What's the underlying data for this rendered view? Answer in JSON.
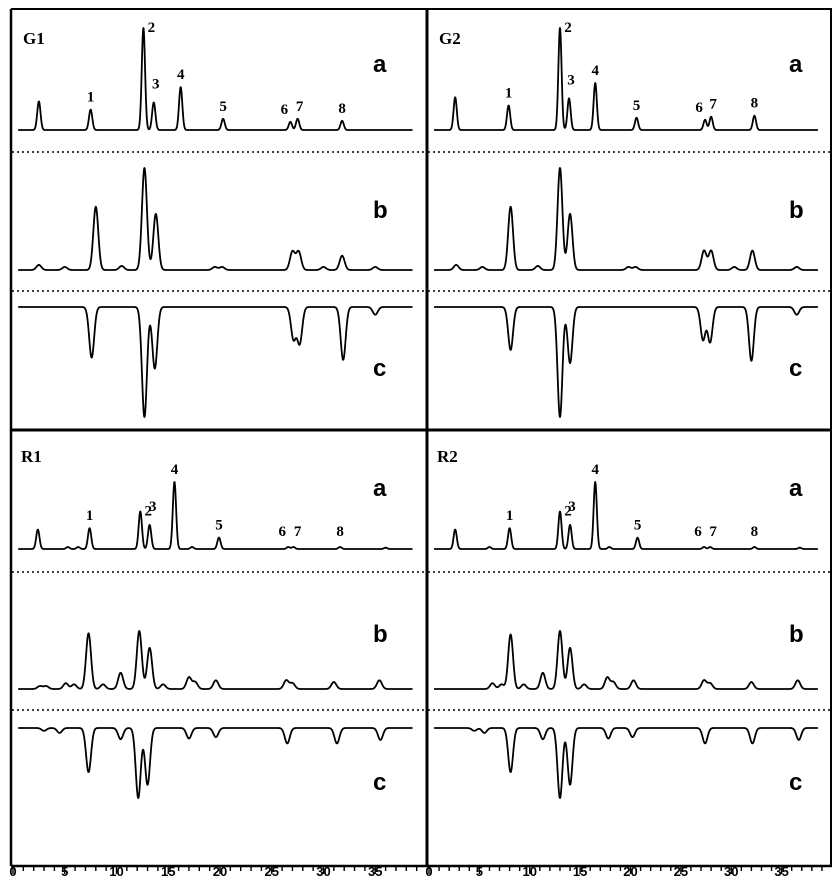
{
  "chart_data": {
    "type": "line",
    "x_axis": {
      "ticks": [
        0,
        5,
        10,
        15,
        20,
        25,
        30,
        35
      ],
      "tick_labels": [
        "0",
        "5",
        "10",
        "15",
        "20",
        "25",
        "30",
        "35"
      ],
      "range": [
        0,
        40
      ]
    },
    "grid": false,
    "legend": "none",
    "line_color": "#000000",
    "panels": [
      {
        "label": "G1",
        "traces": [
          {
            "label": "a",
            "orientation": "up",
            "peaks": [
              [
                2.5,
                0.28
              ],
              [
                7.5,
                0.2
              ],
              [
                12.6,
                1.0
              ],
              [
                13.6,
                0.27
              ],
              [
                16.2,
                0.42
              ],
              [
                20.3,
                0.11
              ],
              [
                26.8,
                0.08
              ],
              [
                27.5,
                0.11
              ],
              [
                31.8,
                0.09
              ]
            ]
          },
          {
            "label": "b",
            "orientation": "up",
            "peaks": [
              [
                2.5,
                0.05
              ],
              [
                5.0,
                0.03
              ],
              [
                8.0,
                0.62
              ],
              [
                10.5,
                0.04
              ],
              [
                12.7,
                1.0
              ],
              [
                13.8,
                0.55
              ],
              [
                19.5,
                0.03
              ],
              [
                20.2,
                0.03
              ],
              [
                27.0,
                0.18
              ],
              [
                27.6,
                0.18
              ],
              [
                30.0,
                0.03
              ],
              [
                31.8,
                0.14
              ],
              [
                35.0,
                0.03
              ]
            ]
          },
          {
            "label": "c",
            "orientation": "down",
            "peaks": [
              [
                7.6,
                0.46
              ],
              [
                12.7,
                1.0
              ],
              [
                13.7,
                0.56
              ],
              [
                27.1,
                0.29
              ],
              [
                27.7,
                0.33
              ],
              [
                31.9,
                0.48
              ],
              [
                35.0,
                0.07
              ]
            ]
          }
        ],
        "peak_labels": [
          {
            "text": "1",
            "x": 7.5
          },
          {
            "text": "2",
            "x": 12.6
          },
          {
            "text": "3",
            "x": 13.6
          },
          {
            "text": "4",
            "x": 16.2
          },
          {
            "text": "5",
            "x": 20.3
          },
          {
            "text": "6",
            "x": 26.8
          },
          {
            "text": "7",
            "x": 27.5
          },
          {
            "text": "8",
            "x": 31.8
          }
        ]
      },
      {
        "label": "G2",
        "traces": [
          {
            "label": "a",
            "orientation": "up",
            "peaks": [
              [
                2.6,
                0.32
              ],
              [
                7.9,
                0.24
              ],
              [
                13.0,
                1.0
              ],
              [
                13.9,
                0.31
              ],
              [
                16.5,
                0.46
              ],
              [
                20.6,
                0.12
              ],
              [
                27.4,
                0.1
              ],
              [
                28.0,
                0.13
              ],
              [
                32.3,
                0.14
              ]
            ]
          },
          {
            "label": "b",
            "orientation": "up",
            "peaks": [
              [
                2.7,
                0.05
              ],
              [
                5.3,
                0.03
              ],
              [
                8.1,
                0.62
              ],
              [
                10.8,
                0.04
              ],
              [
                13.0,
                1.0
              ],
              [
                14.0,
                0.55
              ],
              [
                19.8,
                0.03
              ],
              [
                20.5,
                0.03
              ],
              [
                27.3,
                0.19
              ],
              [
                28.0,
                0.19
              ],
              [
                30.3,
                0.03
              ],
              [
                32.1,
                0.19
              ],
              [
                36.5,
                0.03
              ]
            ]
          },
          {
            "label": "c",
            "orientation": "down",
            "peaks": [
              [
                8.1,
                0.39
              ],
              [
                13.0,
                1.0
              ],
              [
                14.0,
                0.51
              ],
              [
                27.2,
                0.3
              ],
              [
                27.9,
                0.32
              ],
              [
                32.0,
                0.49
              ],
              [
                36.5,
                0.07
              ]
            ]
          }
        ],
        "peak_labels": [
          {
            "text": "1",
            "x": 7.9
          },
          {
            "text": "2",
            "x": 13.0
          },
          {
            "text": "3",
            "x": 13.9
          },
          {
            "text": "4",
            "x": 16.5
          },
          {
            "text": "5",
            "x": 20.6
          },
          {
            "text": "6",
            "x": 27.4
          },
          {
            "text": "7",
            "x": 28.0
          },
          {
            "text": "8",
            "x": 32.3
          }
        ]
      },
      {
        "label": "R1",
        "traces": [
          {
            "label": "a",
            "orientation": "up",
            "peaks": [
              [
                2.4,
                0.29
              ],
              [
                5.3,
                0.03
              ],
              [
                6.3,
                0.03
              ],
              [
                7.4,
                0.31
              ],
              [
                12.3,
                0.56
              ],
              [
                13.2,
                0.36
              ],
              [
                15.6,
                1.0
              ],
              [
                17.3,
                0.03
              ],
              [
                19.9,
                0.17
              ],
              [
                26.6,
                0.03
              ],
              [
                27.1,
                0.03
              ],
              [
                31.6,
                0.03
              ],
              [
                36.0,
                0.02
              ]
            ]
          },
          {
            "label": "b",
            "orientation": "up",
            "peaks": [
              [
                2.6,
                0.05
              ],
              [
                3.2,
                0.05
              ],
              [
                5.1,
                0.1
              ],
              [
                5.9,
                0.08
              ],
              [
                7.3,
                0.96
              ],
              [
                8.7,
                0.08
              ],
              [
                10.4,
                0.28
              ],
              [
                12.2,
                1.0
              ],
              [
                13.2,
                0.71
              ],
              [
                14.5,
                0.08
              ],
              [
                17.0,
                0.2
              ],
              [
                17.6,
                0.12
              ],
              [
                19.6,
                0.15
              ],
              [
                26.4,
                0.15
              ],
              [
                27.0,
                0.1
              ],
              [
                31.0,
                0.12
              ],
              [
                35.4,
                0.15
              ]
            ]
          },
          {
            "label": "c",
            "orientation": "down",
            "peaks": [
              [
                3.0,
                0.04
              ],
              [
                4.5,
                0.07
              ],
              [
                7.3,
                0.63
              ],
              [
                10.4,
                0.16
              ],
              [
                12.1,
                1.0
              ],
              [
                13.0,
                0.81
              ],
              [
                17.0,
                0.15
              ],
              [
                19.6,
                0.13
              ],
              [
                26.5,
                0.22
              ],
              [
                31.3,
                0.22
              ],
              [
                35.5,
                0.17
              ]
            ]
          }
        ],
        "peak_labels": [
          {
            "text": "1",
            "x": 7.4
          },
          {
            "text": "2",
            "x": 12.3
          },
          {
            "text": "3",
            "x": 13.3
          },
          {
            "text": "4",
            "x": 15.6
          },
          {
            "text": "5",
            "x": 19.9
          },
          {
            "text": "6",
            "x": 26.6
          },
          {
            "text": "7",
            "x": 27.3
          },
          {
            "text": "8",
            "x": 31.6
          }
        ]
      },
      {
        "label": "R2",
        "traces": [
          {
            "label": "a",
            "orientation": "up",
            "peaks": [
              [
                2.6,
                0.29
              ],
              [
                6.0,
                0.03
              ],
              [
                8.0,
                0.31
              ],
              [
                13.0,
                0.56
              ],
              [
                14.0,
                0.36
              ],
              [
                16.5,
                1.0
              ],
              [
                17.9,
                0.03
              ],
              [
                20.7,
                0.17
              ],
              [
                27.3,
                0.03
              ],
              [
                27.9,
                0.03
              ],
              [
                32.3,
                0.03
              ],
              [
                36.8,
                0.02
              ]
            ]
          },
          {
            "label": "b",
            "orientation": "up",
            "peaks": [
              [
                6.3,
                0.1
              ],
              [
                7.2,
                0.08
              ],
              [
                8.1,
                0.94
              ],
              [
                9.4,
                0.08
              ],
              [
                11.3,
                0.28
              ],
              [
                13.0,
                1.0
              ],
              [
                14.0,
                0.71
              ],
              [
                15.4,
                0.08
              ],
              [
                17.7,
                0.2
              ],
              [
                18.3,
                0.12
              ],
              [
                20.3,
                0.15
              ],
              [
                27.3,
                0.15
              ],
              [
                27.9,
                0.1
              ],
              [
                32.0,
                0.12
              ],
              [
                36.6,
                0.15
              ]
            ]
          },
          {
            "label": "c",
            "orientation": "down",
            "peaks": [
              [
                4.5,
                0.04
              ],
              [
                5.5,
                0.07
              ],
              [
                8.1,
                0.63
              ],
              [
                11.3,
                0.16
              ],
              [
                13.0,
                1.0
              ],
              [
                14.0,
                0.81
              ],
              [
                17.8,
                0.15
              ],
              [
                20.2,
                0.13
              ],
              [
                27.4,
                0.22
              ],
              [
                32.1,
                0.22
              ],
              [
                36.7,
                0.17
              ]
            ]
          }
        ],
        "peak_labels": [
          {
            "text": "1",
            "x": 8.0
          },
          {
            "text": "2",
            "x": 13.0
          },
          {
            "text": "3",
            "x": 14.0
          },
          {
            "text": "4",
            "x": 16.5
          },
          {
            "text": "5",
            "x": 20.7
          },
          {
            "text": "6",
            "x": 27.3
          },
          {
            "text": "7",
            "x": 28.0
          },
          {
            "text": "8",
            "x": 32.3
          }
        ]
      }
    ]
  }
}
